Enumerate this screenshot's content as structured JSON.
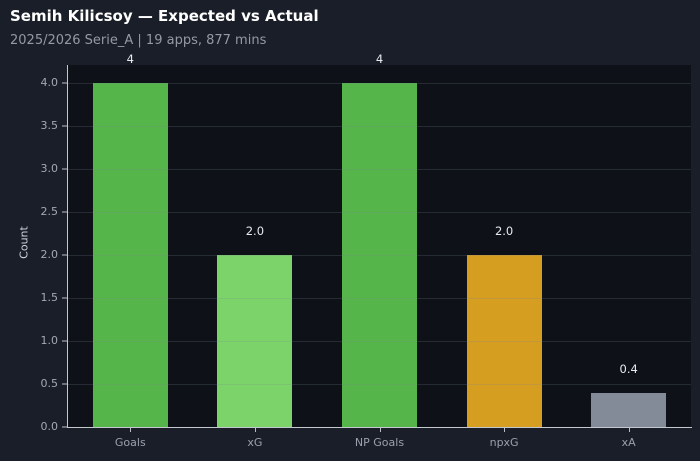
{
  "header": {
    "title": "Semih Kilicsoy — Expected vs Actual",
    "subtitle": "2025/2026 Serie_A | 19 apps, 877 mins"
  },
  "axes": {
    "y_label": "Count"
  },
  "chart_data": {
    "type": "bar",
    "title": "Semih Kilicsoy — Expected vs Actual",
    "subtitle": "2025/2026 Serie_A | 19 apps, 877 mins",
    "categories": [
      "Goals",
      "xG",
      "NP Goals",
      "npxG",
      "xA"
    ],
    "values": [
      4,
      2.0,
      4,
      2.0,
      0.4
    ],
    "value_labels": [
      "4",
      "2.0",
      "4",
      "2.0",
      "0.4"
    ],
    "bar_colors": [
      "#55b54a",
      "#7bd369",
      "#55b54a",
      "#d69e21",
      "#838b99"
    ],
    "xlabel": "",
    "ylabel": "Count",
    "ylim": [
      0,
      4.2
    ],
    "y_ticks": [
      "0.0",
      "0.5",
      "1.0",
      "1.5",
      "2.0",
      "2.5",
      "3.0",
      "3.5",
      "4.0"
    ],
    "grid": true,
    "legend": null
  },
  "theme": {
    "page_bg": "#1a1e28",
    "plot_bg": "#0e1117",
    "grid_color": "rgba(125,135,150,0.22)",
    "spine_color": "#c3c7ce",
    "tick_label_color": "#a2a9b4",
    "value_label_color": "#e8eaee",
    "title_color": "#ffffff",
    "subtitle_color": "#939aa5"
  }
}
